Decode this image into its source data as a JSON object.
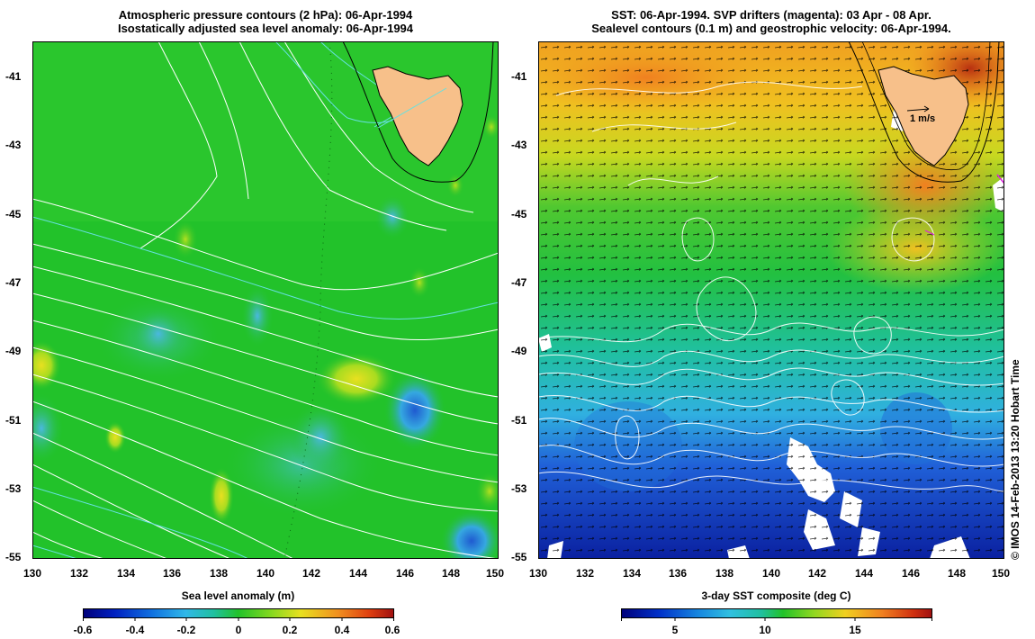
{
  "left_panel": {
    "title_line1": "Atmospheric pressure contours (2 hPa): 06-Apr-1994",
    "title_line2": "Isostatically adjusted sea level anomaly: 06-Apr-1994",
    "x_ticks": [
      "130",
      "132",
      "134",
      "136",
      "138",
      "140",
      "142",
      "144",
      "146",
      "148",
      "150"
    ],
    "y_ticks": [
      "-41",
      "-43",
      "-45",
      "-47",
      "-49",
      "-51",
      "-53",
      "-55"
    ],
    "colorbar": {
      "title": "Sea level anomaly (m)",
      "labels": [
        "-0.6",
        "-0.4",
        "-0.2",
        "0",
        "0.2",
        "0.4",
        "0.6"
      ],
      "range": [
        -0.6,
        0.6
      ]
    }
  },
  "right_panel": {
    "title_line1": "SST: 06-Apr-1994. SVP drifters (magenta): 03 Apr - 08 Apr.",
    "title_line2": "Sealevel contours (0.1 m) and geostrophic velocity: 06-Apr-1994.",
    "x_ticks": [
      "130",
      "132",
      "134",
      "136",
      "138",
      "140",
      "142",
      "144",
      "146",
      "148",
      "150"
    ],
    "y_ticks": [
      "-41",
      "-43",
      "-45",
      "-47",
      "-49",
      "-51",
      "-53",
      "-55"
    ],
    "velocity_scale_label": "1 m/s",
    "colorbar": {
      "title": "3-day SST composite (deg C)",
      "labels": [
        "5",
        "10",
        "15"
      ],
      "range": [
        2,
        19
      ]
    }
  },
  "copyright": "© IMOS 14-Feb-2013 13:20 Hobart Time",
  "colors": {
    "land": "#f7c08a",
    "ocean_green": "#22c22a",
    "contour": "#ffffff",
    "contour_cyan": "#66e0e0"
  }
}
